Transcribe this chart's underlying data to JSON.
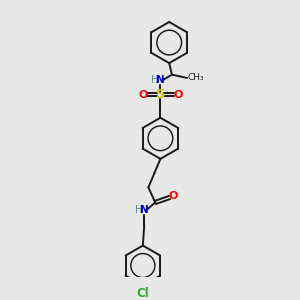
{
  "bg_color": "#e8e8e8",
  "bond_color": "#1a1a1a",
  "atom_colors": {
    "N": "#0000cc",
    "O": "#ff0000",
    "S": "#cccc00",
    "Cl": "#33aa33",
    "H": "#4a9090",
    "C": "#1a1a1a"
  },
  "bond_width": 1.4,
  "fig_width": 3.0,
  "fig_height": 3.0,
  "dpi": 100
}
